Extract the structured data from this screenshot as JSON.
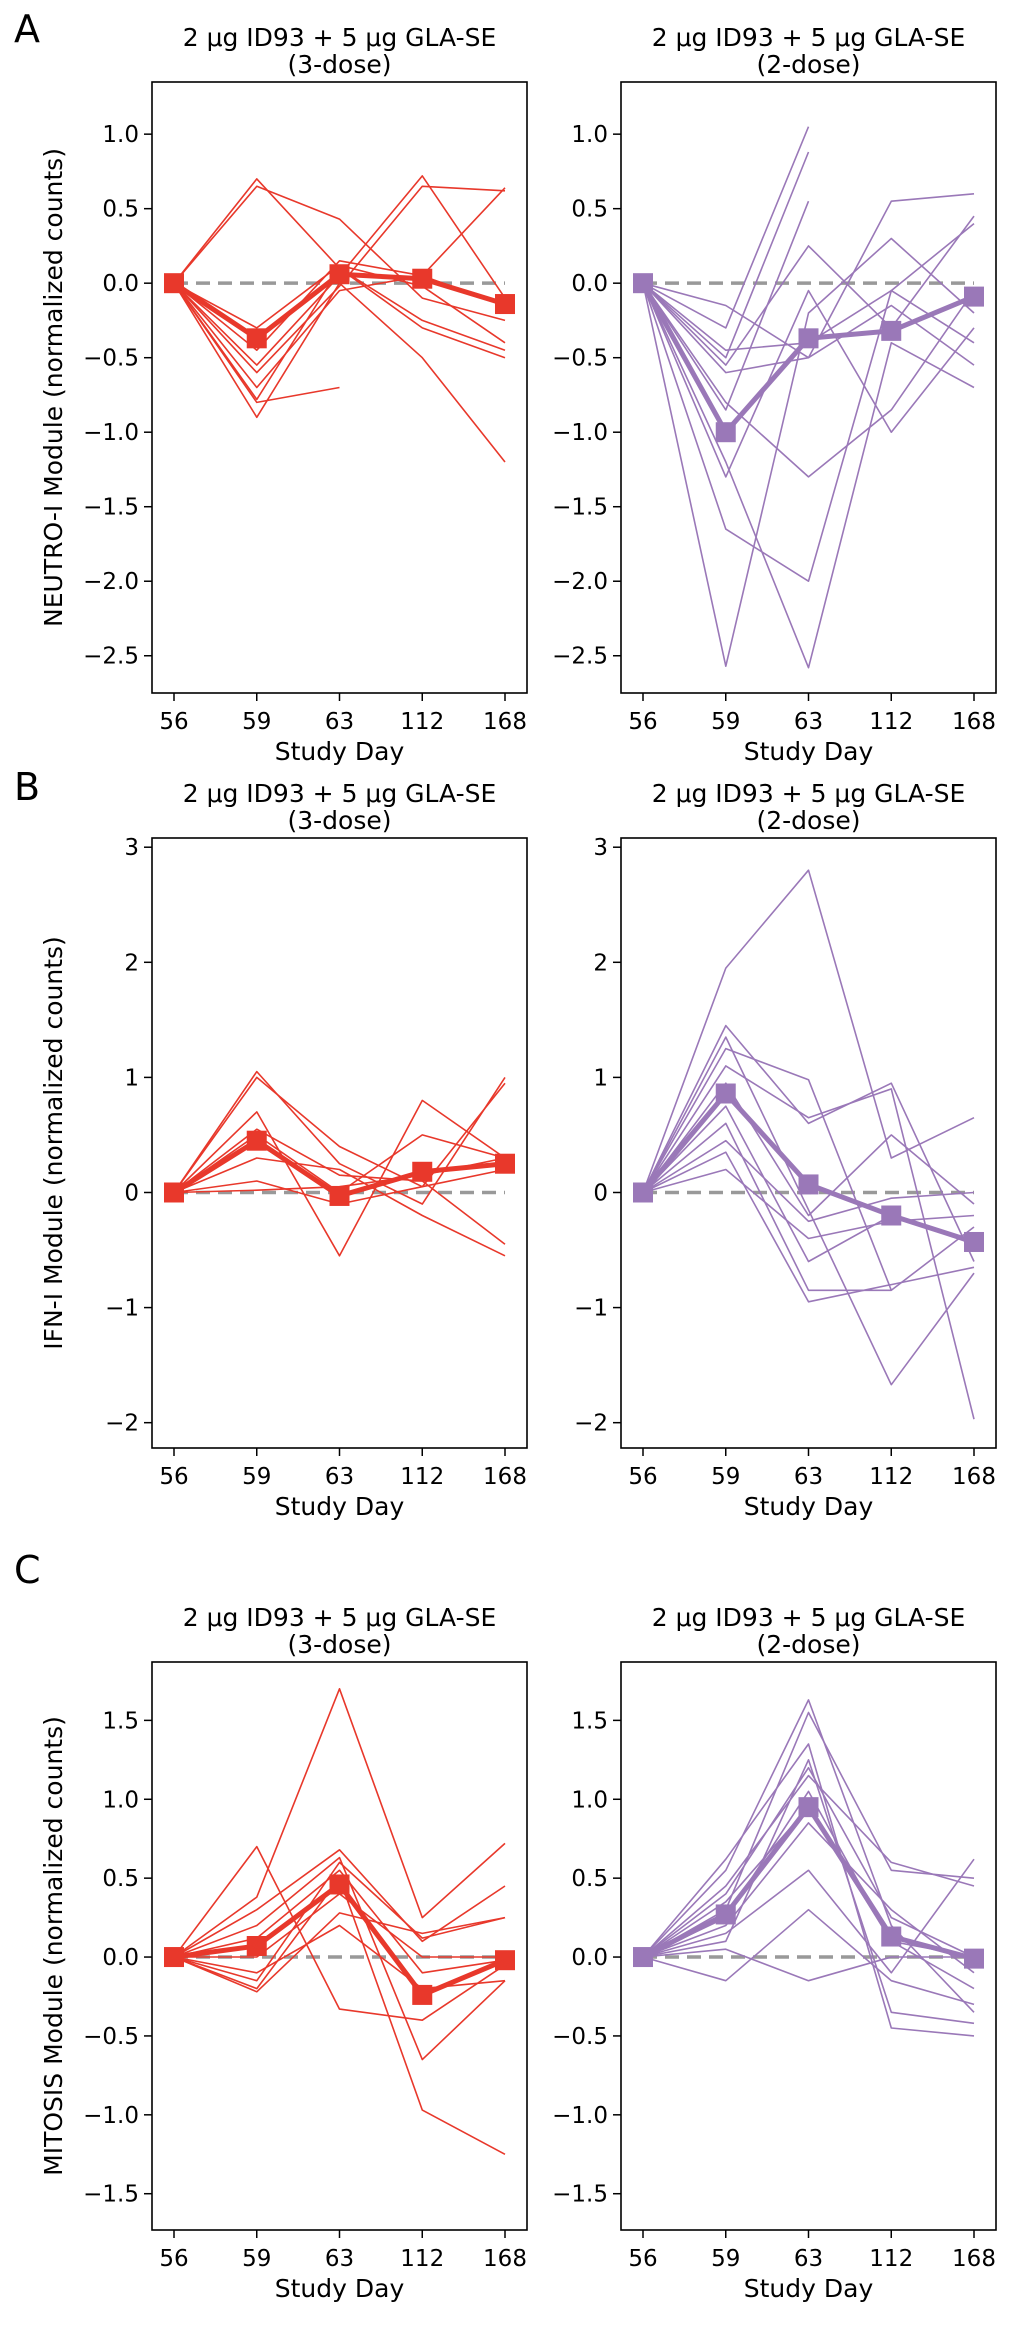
{
  "figure": {
    "panel_letters": [
      "A",
      "B",
      "C"
    ],
    "x_categories": [
      "56",
      "59",
      "63",
      "112",
      "168"
    ],
    "x_label": "Study Day",
    "colors": {
      "three_dose": "#e8382b",
      "two_dose": "#9a78b8",
      "baseline": "#999999"
    }
  },
  "chart_data": [
    {
      "type": "line",
      "row": "A",
      "col": 0,
      "group": "three_dose",
      "title_line1": "2 μg ID93 + 5 μg GLA-SE",
      "title_line2": "(3-dose)",
      "ylabel": "NEUTRO-I Module (normalized counts)",
      "ylim": [
        -2.75,
        1.35
      ],
      "yticks": [
        1.0,
        0.5,
        0.0,
        -0.5,
        -1.0,
        -1.5,
        -2.0,
        -2.5
      ],
      "ytick_labels": [
        "1.0",
        "0.5",
        "0.0",
        "−0.5",
        "−1.0",
        "−1.5",
        "−2.0",
        "−2.5"
      ],
      "categories": [
        "56",
        "59",
        "63",
        "112",
        "168"
      ],
      "mean": [
        0,
        -0.37,
        0.06,
        0.03,
        -0.14
      ],
      "subjects": [
        [
          0,
          0.7,
          0.1,
          -0.25,
          -0.45
        ],
        [
          0,
          0.65,
          0.43,
          -0.1,
          -0.25
        ],
        [
          0,
          -0.55,
          0.05,
          0.72,
          -0.1
        ],
        [
          0,
          -0.45,
          0.15,
          0.05,
          0.64
        ],
        [
          0,
          -0.6,
          -0.02,
          0.65,
          0.62
        ],
        [
          0,
          -0.78,
          0.1,
          -0.3,
          -0.5
        ],
        [
          0,
          -0.9,
          0.0,
          -0.5,
          -1.2
        ],
        [
          0,
          -0.7,
          -0.05,
          0.05,
          -0.15
        ],
        [
          0,
          -0.3,
          0.12,
          -0.02,
          -0.4
        ],
        [
          0,
          -0.8,
          -0.7,
          null,
          null
        ]
      ]
    },
    {
      "type": "line",
      "row": "A",
      "col": 1,
      "group": "two_dose",
      "title_line1": "2 μg ID93 + 5 μg GLA-SE",
      "title_line2": "(2-dose)",
      "ylim": [
        -2.75,
        1.35
      ],
      "yticks": [
        1.0,
        0.5,
        0.0,
        -0.5,
        -1.0,
        -1.5,
        -2.0,
        -2.5
      ],
      "ytick_labels": [
        "1.0",
        "0.5",
        "0.0",
        "−0.5",
        "−1.0",
        "−1.5",
        "−2.0",
        "−2.5"
      ],
      "categories": [
        "56",
        "59",
        "63",
        "112",
        "168"
      ],
      "mean": [
        0,
        -1.0,
        -0.37,
        -0.32,
        -0.09
      ],
      "subjects": [
        [
          0,
          -0.3,
          1.05,
          null,
          null
        ],
        [
          0,
          -0.5,
          0.88,
          null,
          null
        ],
        [
          0,
          -0.85,
          0.55,
          null,
          null
        ],
        [
          0,
          -0.15,
          -0.5,
          0.55,
          0.6
        ],
        [
          0,
          -0.55,
          0.25,
          -0.3,
          0.45
        ],
        [
          0,
          -1.3,
          -0.05,
          -1.0,
          -0.3
        ],
        [
          0,
          -2.57,
          -0.2,
          0.3,
          -0.2
        ],
        [
          0,
          -1.65,
          -2.0,
          -0.05,
          -0.4
        ],
        [
          0,
          -1.2,
          -2.58,
          -0.4,
          -0.7
        ],
        [
          0,
          -0.8,
          -1.3,
          -0.85,
          -0.05
        ],
        [
          0,
          -0.6,
          -0.5,
          -0.15,
          -0.55
        ],
        [
          0,
          -0.45,
          -0.4,
          -0.05,
          0.4
        ]
      ]
    },
    {
      "type": "line",
      "row": "B",
      "col": 0,
      "group": "three_dose",
      "title_line1": "2 μg ID93 + 5 μg GLA-SE",
      "title_line2": "(3-dose)",
      "ylabel": "IFN-I Module (normalized counts)",
      "ylim": [
        -2.22,
        3.08
      ],
      "yticks": [
        3,
        2,
        1,
        0,
        -1,
        -2
      ],
      "ytick_labels": [
        "3",
        "2",
        "1",
        "0",
        "−1",
        "−2"
      ],
      "categories": [
        "56",
        "59",
        "63",
        "112",
        "168"
      ],
      "mean": [
        0,
        0.45,
        -0.03,
        0.18,
        0.25
      ],
      "subjects": [
        [
          0,
          1.05,
          0.25,
          -0.1,
          1.0
        ],
        [
          0,
          1.0,
          0.4,
          0.05,
          0.95
        ],
        [
          0,
          0.7,
          -0.55,
          0.8,
          0.3
        ],
        [
          0,
          0.55,
          0.15,
          0.1,
          -0.45
        ],
        [
          0,
          0.5,
          0.0,
          0.5,
          0.3
        ],
        [
          0,
          0.3,
          0.2,
          -0.2,
          -0.55
        ],
        [
          0,
          0.1,
          -0.1,
          0.05,
          0.2
        ],
        [
          0,
          0.02,
          0.05,
          0.15,
          0.3
        ]
      ]
    },
    {
      "type": "line",
      "row": "B",
      "col": 1,
      "group": "two_dose",
      "title_line1": "2 μg ID93 + 5 μg GLA-SE",
      "title_line2": "(2-dose)",
      "ylim": [
        -2.22,
        3.08
      ],
      "yticks": [
        3,
        2,
        1,
        0,
        -1,
        -2
      ],
      "ytick_labels": [
        "3",
        "2",
        "1",
        "0",
        "−1",
        "−2"
      ],
      "categories": [
        "56",
        "59",
        "63",
        "112",
        "168"
      ],
      "mean": [
        0,
        0.86,
        0.07,
        -0.2,
        -0.43
      ],
      "subjects": [
        [
          0,
          1.95,
          2.8,
          0.3,
          0.65
        ],
        [
          0,
          1.45,
          0.6,
          0.95,
          -0.6
        ],
        [
          0,
          1.35,
          -0.15,
          -1.67,
          -0.7
        ],
        [
          0,
          1.25,
          0.98,
          -0.85,
          null
        ],
        [
          0,
          1.1,
          0.65,
          0.9,
          -1.97
        ],
        [
          0,
          0.95,
          -0.2,
          0.5,
          -0.1
        ],
        [
          0,
          0.75,
          -0.6,
          -0.2,
          -0.45
        ],
        [
          0,
          0.6,
          -0.85,
          -0.85,
          -0.3
        ],
        [
          0,
          0.45,
          -0.25,
          -0.05,
          0.0
        ],
        [
          0,
          0.35,
          -0.95,
          -0.8,
          -0.65
        ],
        [
          0,
          0.2,
          -0.4,
          -0.25,
          -0.2
        ]
      ]
    },
    {
      "type": "line",
      "row": "C",
      "col": 0,
      "group": "three_dose",
      "title_line1": "2 μg ID93 + 5 μg GLA-SE",
      "title_line2": "(3-dose)",
      "ylabel": "MITOSIS Module (normalized counts)",
      "ylim": [
        -1.73,
        1.87
      ],
      "yticks": [
        1.5,
        1.0,
        0.5,
        0.0,
        -0.5,
        -1.0,
        -1.5
      ],
      "ytick_labels": [
        "1.5",
        "1.0",
        "0.5",
        "0.0",
        "−0.5",
        "−1.0",
        "−1.5"
      ],
      "categories": [
        "56",
        "59",
        "63",
        "112",
        "168"
      ],
      "mean": [
        0,
        0.07,
        0.46,
        -0.24,
        -0.02
      ],
      "subjects": [
        [
          0,
          0.7,
          -0.33,
          -0.4,
          -0.05
        ],
        [
          0,
          0.38,
          1.7,
          0.25,
          0.72
        ],
        [
          0,
          0.3,
          0.68,
          0.1,
          0.45
        ],
        [
          0,
          0.2,
          0.63,
          -0.65,
          -0.15
        ],
        [
          0,
          -0.15,
          0.6,
          0.12,
          0.25
        ],
        [
          0,
          -0.2,
          0.5,
          -0.97,
          -1.25
        ],
        [
          0,
          -0.22,
          0.28,
          0.15,
          0.25
        ],
        [
          0,
          -0.1,
          0.2,
          -0.2,
          -0.15
        ],
        [
          0,
          0.12,
          0.55,
          -0.1,
          -0.02
        ],
        [
          0,
          0.0,
          0.4,
          0.0,
          0.0
        ]
      ]
    },
    {
      "type": "line",
      "row": "C",
      "col": 1,
      "group": "two_dose",
      "title_line1": "2 μg ID93 + 5 μg GLA-SE",
      "title_line2": "(2-dose)",
      "ylim": [
        -1.73,
        1.87
      ],
      "yticks": [
        1.5,
        1.0,
        0.5,
        0.0,
        -0.5,
        -1.0,
        -1.5
      ],
      "ytick_labels": [
        "1.5",
        "1.0",
        "0.5",
        "0.0",
        "−0.5",
        "−1.0",
        "−1.5"
      ],
      "categories": [
        "56",
        "59",
        "63",
        "112",
        "168"
      ],
      "mean": [
        0,
        0.27,
        0.95,
        0.13,
        -0.01
      ],
      "subjects": [
        [
          0,
          0.55,
          1.63,
          0.2,
          -0.35
        ],
        [
          0,
          0.3,
          1.55,
          0.55,
          0.5
        ],
        [
          0,
          0.62,
          1.35,
          -0.45,
          -0.5
        ],
        [
          0,
          0.1,
          1.25,
          -0.35,
          -0.42
        ],
        [
          0,
          0.45,
          1.15,
          0.6,
          0.45
        ],
        [
          0,
          0.35,
          0.95,
          0.1,
          0.0
        ],
        [
          0,
          0.2,
          0.85,
          0.3,
          -0.1
        ],
        [
          0,
          0.15,
          0.55,
          -0.1,
          0.62
        ],
        [
          0,
          -0.15,
          0.3,
          -0.15,
          -0.3
        ],
        [
          0,
          0.05,
          -0.15,
          0.0,
          0.0
        ],
        [
          0,
          0.4,
          1.2,
          0.25,
          0.0
        ],
        [
          0,
          0.25,
          1.05,
          0.1,
          -0.2
        ]
      ]
    }
  ]
}
